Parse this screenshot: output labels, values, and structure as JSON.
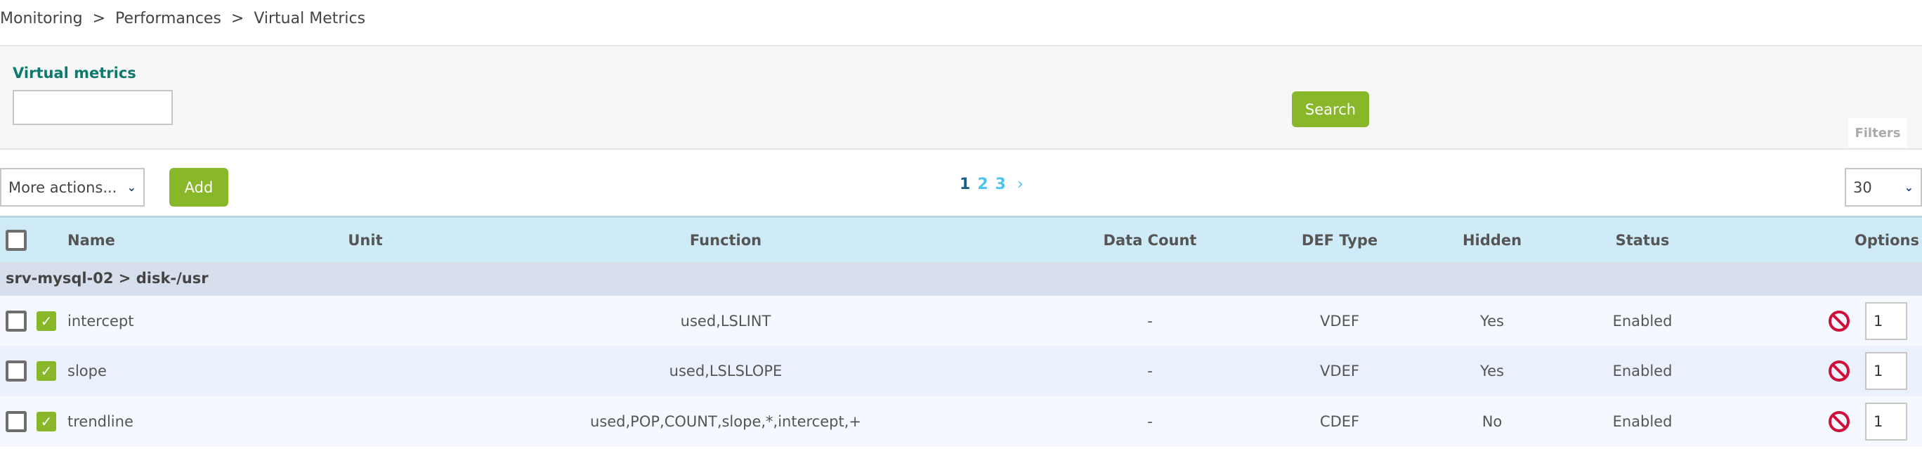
{
  "breadcrumb": "Monitoring  >  Performances  >  Virtual Metrics",
  "filters": {
    "label": "Virtual metrics",
    "input_value": "",
    "search_label": "Search",
    "filters_tab": "Filters"
  },
  "toolbar": {
    "more_actions": "More actions...",
    "add_label": "Add",
    "pages": [
      "1",
      "2",
      "3"
    ],
    "next": "›",
    "per_page": "30"
  },
  "colors": {
    "accent_green": "#88b72a",
    "label_teal": "#0e7a6e",
    "header_bg": "#d0ebf8",
    "current_page": "#1a5f8a",
    "other_page": "#4dc4f0",
    "disable_red": "#d0103a"
  },
  "table": {
    "headers": {
      "name": "Name",
      "unit": "Unit",
      "function": "Function",
      "data_count": "Data Count",
      "def_type": "DEF Type",
      "hidden": "Hidden",
      "status": "Status",
      "options": "Options"
    },
    "group": "srv-mysql-02 > disk-/usr",
    "rows": [
      {
        "name": "intercept",
        "unit": "",
        "function": "used,LSLINT",
        "data_count": "-",
        "def_type": "VDEF",
        "hidden": "Yes",
        "status": "Enabled",
        "order": "1"
      },
      {
        "name": "slope",
        "unit": "",
        "function": "used,LSLSLOPE",
        "data_count": "-",
        "def_type": "VDEF",
        "hidden": "Yes",
        "status": "Enabled",
        "order": "1"
      },
      {
        "name": "trendline",
        "unit": "",
        "function": "used,POP,COUNT,slope,*,intercept,+",
        "data_count": "-",
        "def_type": "CDEF",
        "hidden": "No",
        "status": "Enabled",
        "order": "1"
      }
    ]
  }
}
